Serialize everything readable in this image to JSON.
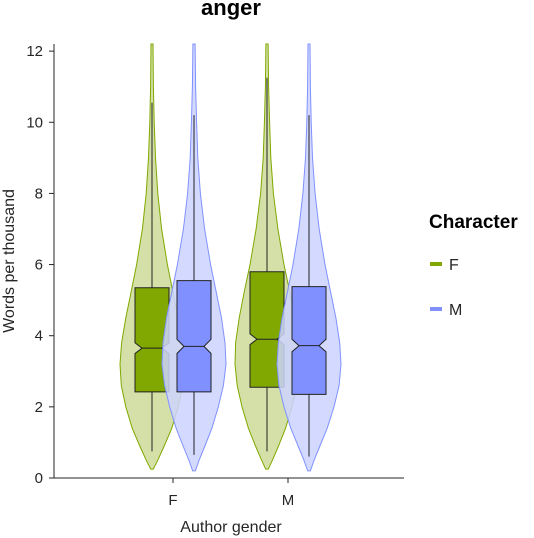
{
  "chart_data": {
    "type": "violin",
    "title": "anger",
    "xlabel": "Author gender",
    "ylabel": "Words per thousand",
    "ylim": [
      0,
      12.2
    ],
    "yticks": [
      0,
      2,
      4,
      6,
      8,
      10,
      12
    ],
    "ytick_labels": [
      "0",
      "2",
      "4",
      "6",
      "8",
      "10",
      "12"
    ],
    "categories": [
      "F",
      "M"
    ],
    "legend": {
      "title": "Character",
      "position": "right"
    },
    "series": [
      {
        "name": "F",
        "color": "#80a800",
        "violin_fill": "#ccdb99",
        "groups": [
          {
            "category": "F",
            "min": 0.25,
            "max": 12.2,
            "whisker_low": 0.75,
            "q1": 2.42,
            "median": 3.65,
            "q3": 5.35,
            "whisker_high": 10.55,
            "notch_low": 3.5,
            "notch_high": 3.8,
            "density": [
              [
                0.25,
                0.04
              ],
              [
                0.5,
                0.18
              ],
              [
                0.9,
                0.38
              ],
              [
                1.4,
                0.62
              ],
              [
                2.0,
                0.82
              ],
              [
                2.6,
                0.96
              ],
              [
                3.2,
                1.0
              ],
              [
                3.8,
                0.95
              ],
              [
                4.5,
                0.82
              ],
              [
                5.2,
                0.66
              ],
              [
                6.0,
                0.48
              ],
              [
                7.0,
                0.3
              ],
              [
                8.0,
                0.18
              ],
              [
                9.0,
                0.11
              ],
              [
                10.0,
                0.07
              ],
              [
                11.0,
                0.045
              ],
              [
                12.2,
                0.03
              ]
            ]
          },
          {
            "category": "M",
            "min": 0.25,
            "max": 12.2,
            "whisker_low": 0.75,
            "q1": 2.55,
            "median": 3.9,
            "q3": 5.8,
            "whisker_high": 11.25,
            "notch_low": 3.75,
            "notch_high": 4.05,
            "density": [
              [
                0.25,
                0.04
              ],
              [
                0.5,
                0.17
              ],
              [
                0.9,
                0.36
              ],
              [
                1.4,
                0.58
              ],
              [
                2.0,
                0.78
              ],
              [
                2.6,
                0.93
              ],
              [
                3.2,
                1.0
              ],
              [
                3.8,
                0.98
              ],
              [
                4.5,
                0.87
              ],
              [
                5.2,
                0.72
              ],
              [
                6.0,
                0.53
              ],
              [
                7.0,
                0.34
              ],
              [
                8.0,
                0.2
              ],
              [
                9.0,
                0.12
              ],
              [
                10.0,
                0.08
              ],
              [
                11.0,
                0.05
              ],
              [
                12.2,
                0.035
              ]
            ]
          }
        ]
      },
      {
        "name": "M",
        "color": "#8091ff",
        "violin_fill": "#ccd3ff",
        "groups": [
          {
            "category": "F",
            "min": 0.2,
            "max": 12.2,
            "whisker_low": 0.65,
            "q1": 2.42,
            "median": 3.7,
            "q3": 5.55,
            "whisker_high": 10.2,
            "notch_low": 3.5,
            "notch_high": 3.9,
            "density": [
              [
                0.2,
                0.04
              ],
              [
                0.5,
                0.16
              ],
              [
                0.9,
                0.34
              ],
              [
                1.4,
                0.56
              ],
              [
                2.0,
                0.76
              ],
              [
                2.6,
                0.92
              ],
              [
                3.2,
                1.0
              ],
              [
                3.8,
                0.97
              ],
              [
                4.5,
                0.86
              ],
              [
                5.2,
                0.7
              ],
              [
                6.0,
                0.52
              ],
              [
                7.0,
                0.33
              ],
              [
                8.0,
                0.2
              ],
              [
                9.0,
                0.12
              ],
              [
                10.0,
                0.08
              ],
              [
                11.0,
                0.05
              ],
              [
                12.2,
                0.035
              ]
            ]
          },
          {
            "category": "M",
            "min": 0.2,
            "max": 12.2,
            "whisker_low": 0.6,
            "q1": 2.35,
            "median": 3.72,
            "q3": 5.38,
            "whisker_high": 10.2,
            "notch_low": 3.55,
            "notch_high": 3.9,
            "density": [
              [
                0.2,
                0.04
              ],
              [
                0.5,
                0.16
              ],
              [
                0.9,
                0.34
              ],
              [
                1.4,
                0.57
              ],
              [
                2.0,
                0.78
              ],
              [
                2.6,
                0.94
              ],
              [
                3.2,
                1.0
              ],
              [
                3.8,
                0.96
              ],
              [
                4.5,
                0.84
              ],
              [
                5.2,
                0.68
              ],
              [
                6.0,
                0.5
              ],
              [
                7.0,
                0.32
              ],
              [
                8.0,
                0.19
              ],
              [
                9.0,
                0.11
              ],
              [
                10.0,
                0.07
              ],
              [
                11.0,
                0.045
              ],
              [
                12.2,
                0.03
              ]
            ]
          }
        ]
      }
    ]
  }
}
